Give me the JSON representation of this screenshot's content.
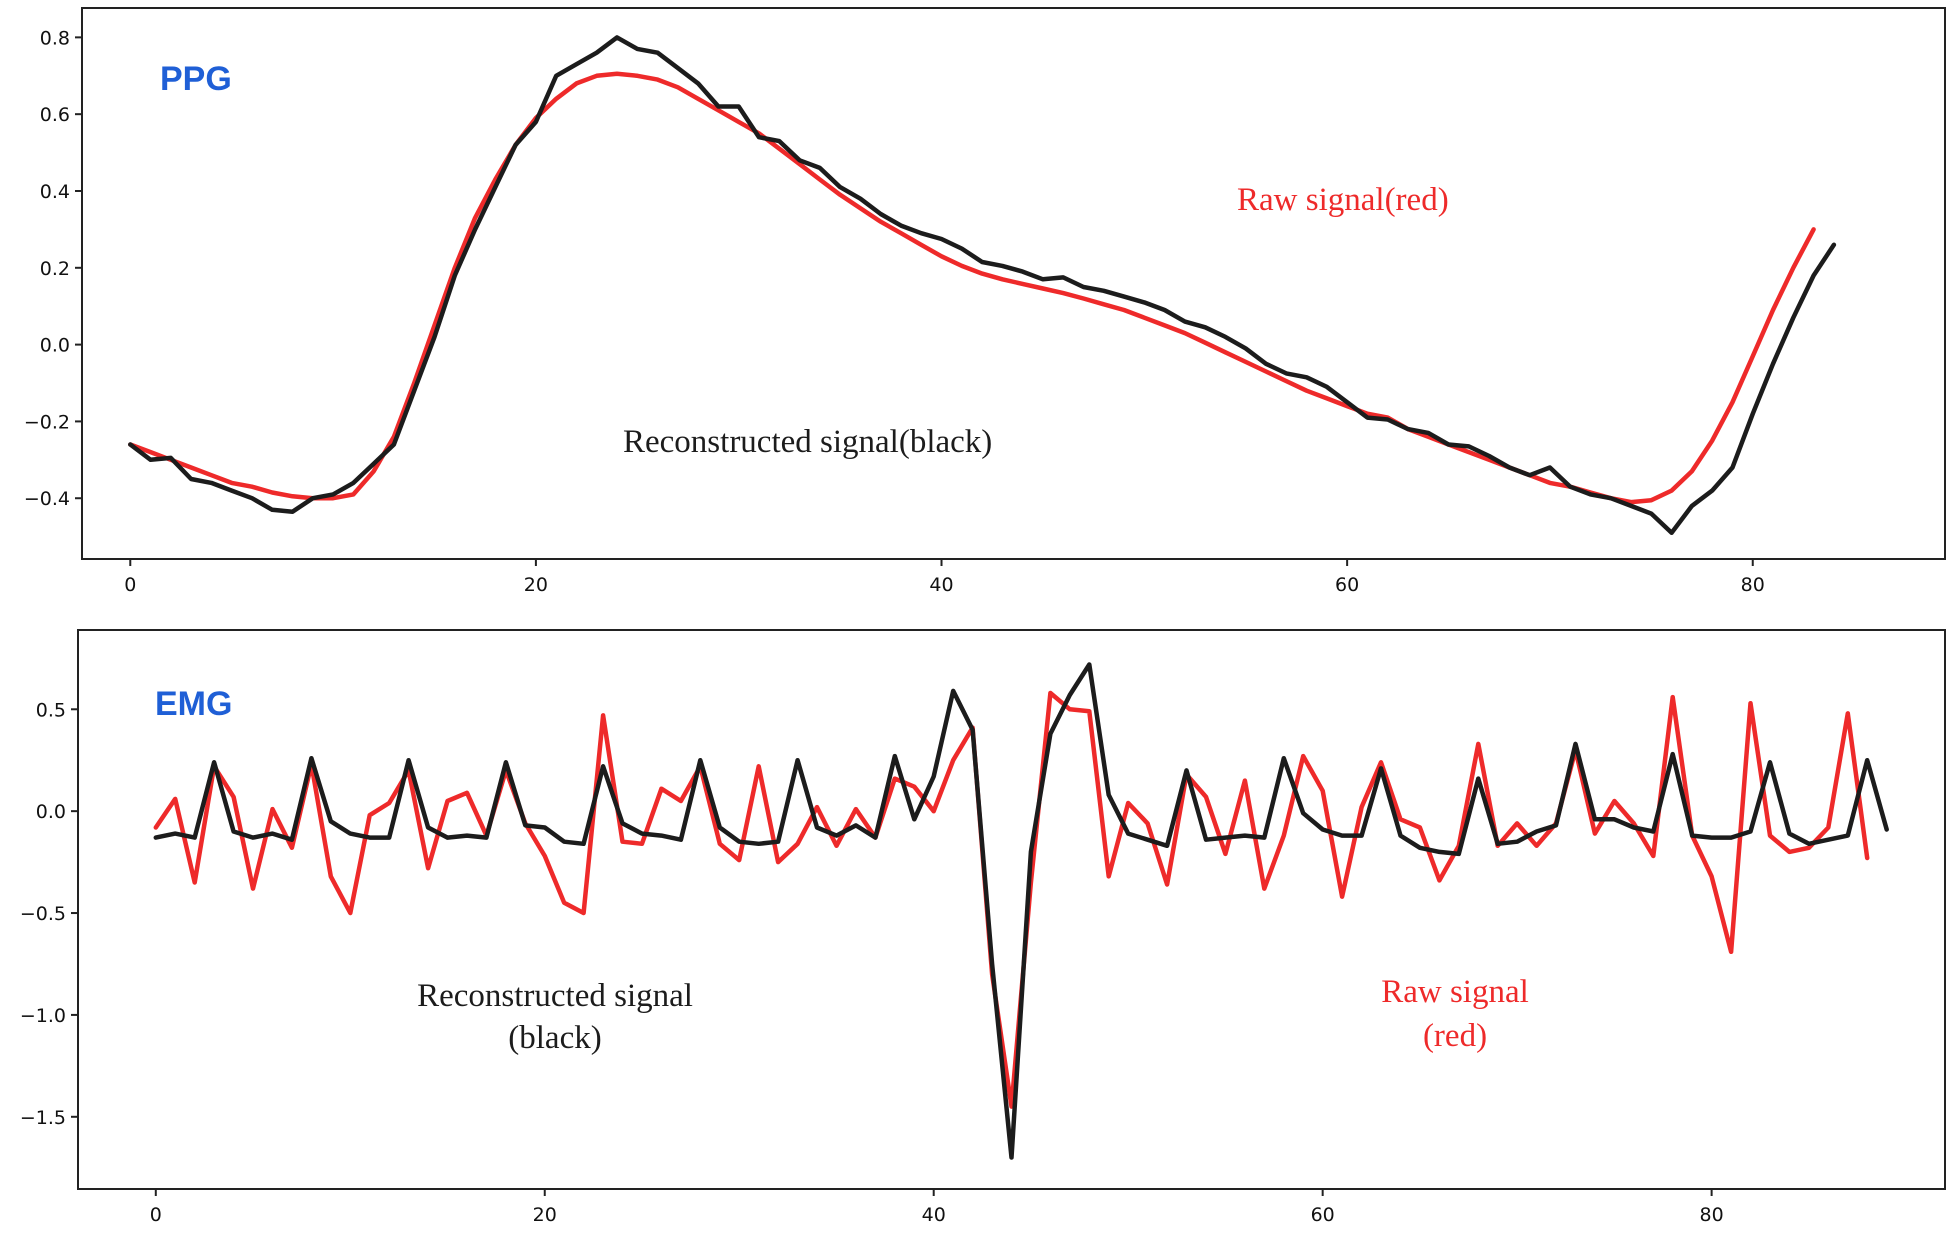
{
  "colors": {
    "raw": "#ee2a2a",
    "reconstructed": "#1c1c1c",
    "title": "#1f5fd6",
    "axis": "#222222"
  },
  "chart_data": [
    {
      "type": "line",
      "title": "PPG",
      "xlim": [
        -1,
        88
      ],
      "ylim": [
        -0.54,
        0.84
      ],
      "xticks": [
        0,
        20,
        40,
        60,
        80
      ],
      "xtick_labels": [
        "0",
        "20",
        "40",
        "60",
        "80"
      ],
      "yticks": [
        0.8,
        0.6,
        0.4,
        0.2,
        0.0,
        -0.2,
        -0.4
      ],
      "ytick_labels": [
        "0.8",
        "0.6",
        "0.4",
        "0.2",
        "0.0",
        "−0.2",
        "−0.4"
      ],
      "annotations": [
        {
          "text": "Raw signal(red)",
          "color": "raw"
        },
        {
          "text": "Reconstructed signal(black)",
          "color": "reconstructed"
        }
      ],
      "series": [
        {
          "name": "Raw signal",
          "color": "raw",
          "x_start": 0,
          "values": [
            -0.26,
            -0.28,
            -0.3,
            -0.32,
            -0.34,
            -0.36,
            -0.37,
            -0.385,
            -0.395,
            -0.4,
            -0.4,
            -0.39,
            -0.33,
            -0.24,
            -0.1,
            0.05,
            0.2,
            0.33,
            0.43,
            0.52,
            0.59,
            0.64,
            0.68,
            0.7,
            0.705,
            0.7,
            0.69,
            0.67,
            0.64,
            0.61,
            0.58,
            0.55,
            0.51,
            0.47,
            0.43,
            0.39,
            0.355,
            0.32,
            0.29,
            0.26,
            0.23,
            0.205,
            0.185,
            0.17,
            0.158,
            0.146,
            0.134,
            0.12,
            0.105,
            0.09,
            0.07,
            0.05,
            0.03,
            0.005,
            -0.02,
            -0.045,
            -0.07,
            -0.095,
            -0.12,
            -0.14,
            -0.16,
            -0.18,
            -0.19,
            -0.22,
            -0.24,
            -0.26,
            -0.28,
            -0.3,
            -0.32,
            -0.34,
            -0.36,
            -0.37,
            -0.385,
            -0.4,
            -0.41,
            -0.405,
            -0.38,
            -0.33,
            -0.25,
            -0.15,
            -0.03,
            0.09,
            0.2,
            0.3
          ]
        },
        {
          "name": "Reconstructed signal",
          "color": "reconstructed",
          "x_start": 0,
          "values": [
            -0.26,
            -0.3,
            -0.295,
            -0.35,
            -0.36,
            -0.38,
            -0.4,
            -0.43,
            -0.435,
            -0.4,
            -0.39,
            -0.36,
            -0.31,
            -0.26,
            -0.12,
            0.02,
            0.18,
            0.3,
            0.41,
            0.52,
            0.58,
            0.7,
            0.73,
            0.76,
            0.8,
            0.77,
            0.76,
            0.72,
            0.68,
            0.62,
            0.62,
            0.54,
            0.53,
            0.48,
            0.46,
            0.41,
            0.38,
            0.34,
            0.31,
            0.29,
            0.275,
            0.25,
            0.215,
            0.205,
            0.19,
            0.17,
            0.175,
            0.15,
            0.14,
            0.125,
            0.11,
            0.09,
            0.06,
            0.045,
            0.02,
            -0.01,
            -0.05,
            -0.075,
            -0.085,
            -0.11,
            -0.15,
            -0.19,
            -0.195,
            -0.22,
            -0.23,
            -0.26,
            -0.265,
            -0.29,
            -0.32,
            -0.34,
            -0.32,
            -0.37,
            -0.39,
            -0.4,
            -0.42,
            -0.44,
            -0.49,
            -0.42,
            -0.38,
            -0.32,
            -0.18,
            -0.05,
            0.07,
            0.18,
            0.26
          ]
        }
      ]
    },
    {
      "type": "line",
      "title": "EMG",
      "xlim": [
        -4,
        92
      ],
      "ylim": [
        -1.82,
        0.84
      ],
      "xticks": [
        0,
        20,
        40,
        60,
        80
      ],
      "xtick_labels": [
        "0",
        "20",
        "40",
        "60",
        "80"
      ],
      "yticks": [
        0.5,
        0.0,
        -0.5,
        -1.0,
        -1.5
      ],
      "ytick_labels": [
        "0.5",
        "0.0",
        "−0.5",
        "−1.0",
        "−1.5"
      ],
      "annotations": [
        {
          "text": "Reconstructed signal",
          "color": "reconstructed"
        },
        {
          "text": "(black)",
          "color": "reconstructed"
        },
        {
          "text": "Raw signal",
          "color": "raw"
        },
        {
          "text": "(red)",
          "color": "raw"
        }
      ],
      "series": [
        {
          "name": "Raw signal",
          "color": "raw",
          "x_start": 0,
          "values": [
            -0.08,
            0.06,
            -0.35,
            0.22,
            0.07,
            -0.38,
            0.01,
            -0.18,
            0.23,
            -0.32,
            -0.5,
            -0.02,
            0.04,
            0.2,
            -0.28,
            0.05,
            0.09,
            -0.12,
            0.2,
            -0.06,
            -0.22,
            -0.45,
            -0.5,
            0.47,
            -0.15,
            -0.16,
            0.11,
            0.05,
            0.22,
            -0.16,
            -0.24,
            0.22,
            -0.25,
            -0.16,
            0.02,
            -0.17,
            0.01,
            -0.13,
            0.16,
            0.12,
            0.0,
            0.25,
            0.41,
            -0.8,
            -1.45,
            -0.35,
            0.58,
            0.5,
            0.49,
            -0.32,
            0.04,
            -0.06,
            -0.36,
            0.18,
            0.07,
            -0.21,
            0.15,
            -0.38,
            -0.12,
            0.27,
            0.1,
            -0.42,
            0.02,
            0.24,
            -0.04,
            -0.08,
            -0.34,
            -0.17,
            0.33,
            -0.17,
            -0.06,
            -0.17,
            -0.06,
            0.3,
            -0.11,
            0.05,
            -0.06,
            -0.22,
            0.56,
            -0.12,
            -0.32,
            -0.69,
            0.53,
            -0.12,
            -0.2,
            -0.18,
            -0.08,
            0.48,
            -0.23
          ]
        },
        {
          "name": "Reconstructed signal",
          "color": "reconstructed",
          "x_start": 0,
          "values": [
            -0.13,
            -0.11,
            -0.13,
            0.24,
            -0.1,
            -0.13,
            -0.11,
            -0.14,
            0.26,
            -0.05,
            -0.11,
            -0.13,
            -0.13,
            0.25,
            -0.08,
            -0.13,
            -0.12,
            -0.13,
            0.24,
            -0.07,
            -0.08,
            -0.15,
            -0.16,
            0.22,
            -0.06,
            -0.11,
            -0.12,
            -0.14,
            0.25,
            -0.08,
            -0.15,
            -0.16,
            -0.15,
            0.25,
            -0.08,
            -0.12,
            -0.07,
            -0.13,
            0.27,
            -0.04,
            0.17,
            0.59,
            0.4,
            -0.75,
            -1.7,
            -0.2,
            0.38,
            0.57,
            0.72,
            0.08,
            -0.11,
            -0.14,
            -0.17,
            0.2,
            -0.14,
            -0.13,
            -0.12,
            -0.13,
            0.26,
            -0.01,
            -0.09,
            -0.12,
            -0.12,
            0.21,
            -0.12,
            -0.18,
            -0.2,
            -0.21,
            0.16,
            -0.16,
            -0.15,
            -0.1,
            -0.07,
            0.33,
            -0.04,
            -0.04,
            -0.08,
            -0.1,
            0.28,
            -0.12,
            -0.13,
            -0.13,
            -0.1,
            0.24,
            -0.11,
            -0.16,
            -0.14,
            -0.12,
            0.25,
            -0.09
          ]
        }
      ]
    }
  ]
}
